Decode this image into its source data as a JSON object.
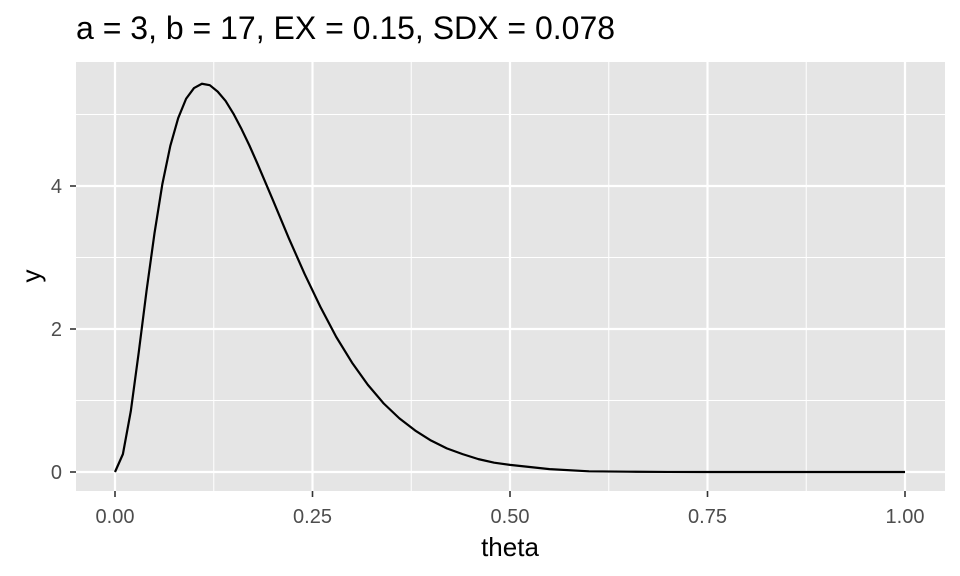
{
  "chart_data": {
    "type": "line",
    "title": "a = 3, b = 17, EX = 0.15, SDX = 0.078",
    "xlabel": "theta",
    "ylabel": "y",
    "xlim": [
      0,
      1
    ],
    "ylim": [
      0,
      5.45
    ],
    "x_ticks": [
      0,
      0.25,
      0.5,
      0.75,
      1
    ],
    "x_tick_labels": [
      "0.00",
      "0.25",
      "0.50",
      "0.75",
      "1.00"
    ],
    "y_ticks": [
      0,
      2,
      4
    ],
    "y_tick_labels": [
      "0",
      "2",
      "4"
    ],
    "grid": true,
    "legend": "none",
    "colors": {
      "panel": "#e5e5e5",
      "grid": "#ffffff",
      "line": "#000000",
      "tick": "#4d4d4d"
    },
    "series": [
      {
        "x": [
          0,
          0.01,
          0.02,
          0.03,
          0.04,
          0.05,
          0.06,
          0.07,
          0.08,
          0.09,
          0.1,
          0.11,
          0.12,
          0.13,
          0.14,
          0.15,
          0.16,
          0.17,
          0.18,
          0.19,
          0.2,
          0.22,
          0.24,
          0.26,
          0.28,
          0.3,
          0.32,
          0.34,
          0.36,
          0.38,
          0.4,
          0.42,
          0.44,
          0.46,
          0.48,
          0.5,
          0.55,
          0.6,
          0.65,
          0.7,
          0.75,
          0.8,
          0.85,
          0.9,
          0.95,
          1
        ],
        "values": [
          0,
          0.25,
          0.85,
          1.67,
          2.54,
          3.34,
          4.03,
          4.56,
          4.95,
          5.22,
          5.37,
          5.43,
          5.41,
          5.32,
          5.19,
          5.01,
          4.8,
          4.57,
          4.32,
          4.06,
          3.8,
          3.27,
          2.77,
          2.31,
          1.89,
          1.53,
          1.22,
          0.96,
          0.75,
          0.58,
          0.44,
          0.33,
          0.25,
          0.18,
          0.13,
          0.1,
          0.04,
          0.01,
          0.004,
          0.001,
          0,
          0,
          0,
          0,
          0,
          0
        ]
      }
    ]
  }
}
